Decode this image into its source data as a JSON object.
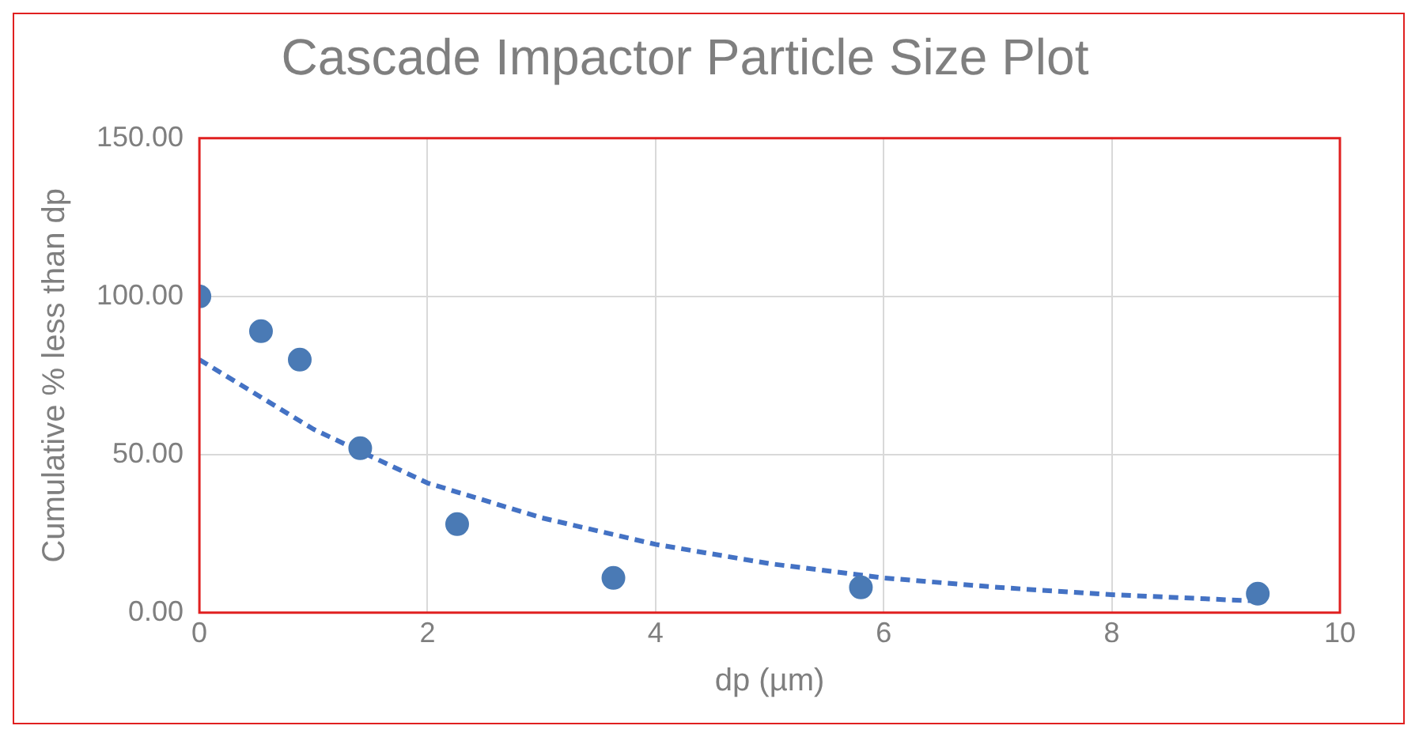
{
  "chart_data": {
    "type": "scatter",
    "title": "Cascade Impactor Particle Size Plot",
    "xlabel": "dp (µm)",
    "ylabel": "Cumulative % less than dp",
    "xlim": [
      0,
      10
    ],
    "xticks": [
      0,
      2,
      4,
      6,
      8,
      10
    ],
    "ylim": [
      0,
      150
    ],
    "yticks": [
      {
        "value": 0,
        "label": "0.00"
      },
      {
        "value": 50,
        "label": "50.00"
      },
      {
        "value": 100,
        "label": "100.00"
      },
      {
        "value": 150,
        "label": "150.00"
      }
    ],
    "grid": true,
    "legend": false,
    "marker": "circle",
    "series": [
      {
        "type": "scatter",
        "color": "#4a7ab5",
        "x": [
          0,
          0.54,
          0.88,
          1.41,
          2.26,
          3.63,
          5.8,
          9.28
        ],
        "values": [
          100,
          89,
          80,
          52,
          28,
          11,
          8,
          6
        ]
      },
      {
        "type": "line",
        "color": "#4472c4",
        "line_style": "dashed",
        "marker": "none",
        "x": [
          0,
          1,
          2,
          3,
          4,
          5,
          6,
          7,
          8,
          9,
          9.3
        ],
        "values": [
          80,
          58,
          41,
          30,
          21.6,
          15.5,
          11,
          8,
          5.7,
          4.1,
          3.7
        ]
      }
    ]
  }
}
